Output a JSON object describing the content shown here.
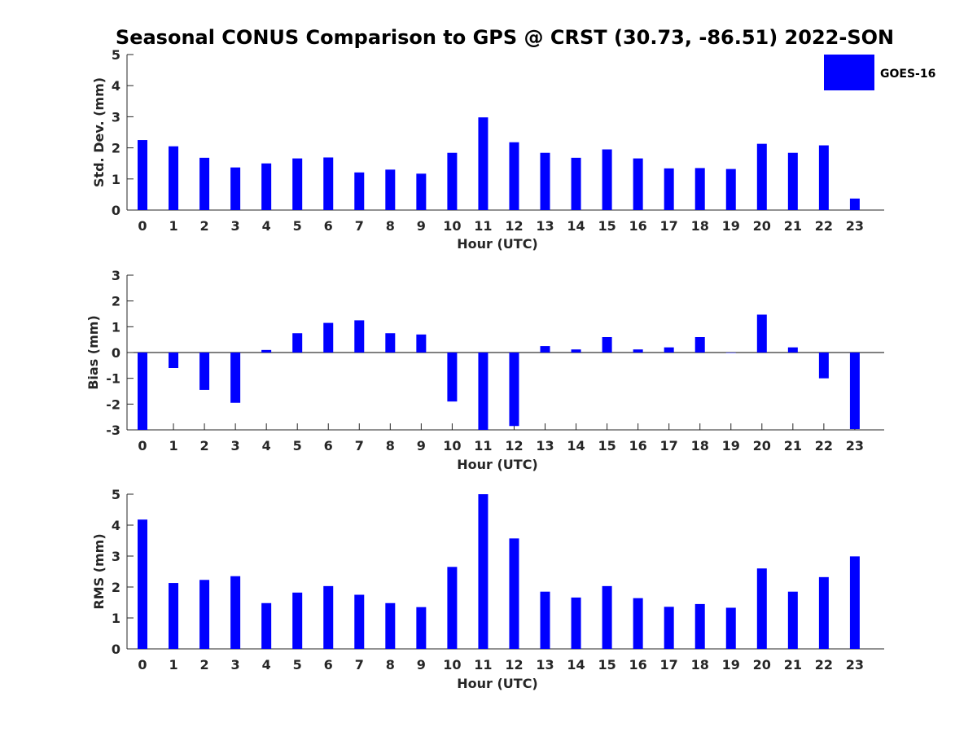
{
  "figure": {
    "title": "Seasonal CONUS Comparison to GPS @ CRST (30.73, -86.51) 2022-SON"
  },
  "legend": {
    "label": "GOES-16",
    "color": "#0000ff"
  },
  "chart_data": [
    {
      "type": "bar",
      "xlabel": "Hour (UTC)",
      "ylabel": "Std. Dev. (mm)",
      "ylim": [
        0,
        5
      ],
      "yticks": [
        0,
        1,
        2,
        3,
        4,
        5
      ],
      "grid": false,
      "legend_position": "top-right",
      "categories": [
        "0",
        "1",
        "2",
        "3",
        "4",
        "5",
        "6",
        "7",
        "8",
        "9",
        "10",
        "11",
        "12",
        "13",
        "14",
        "15",
        "16",
        "17",
        "18",
        "19",
        "20",
        "21",
        "22",
        "23"
      ],
      "series": [
        {
          "name": "GOES-16",
          "color": "#0000ff",
          "values": [
            2.25,
            2.05,
            1.68,
            1.37,
            1.5,
            1.66,
            1.69,
            1.21,
            1.3,
            1.17,
            1.84,
            2.98,
            2.18,
            1.84,
            1.68,
            1.95,
            1.66,
            1.34,
            1.35,
            1.32,
            2.13,
            1.84,
            2.08,
            0.37
          ]
        }
      ]
    },
    {
      "type": "bar",
      "xlabel": "Hour (UTC)",
      "ylabel": "Bias (mm)",
      "ylim": [
        -3,
        3
      ],
      "yticks": [
        -3,
        -2,
        -1,
        0,
        1,
        2,
        3
      ],
      "grid": false,
      "categories": [
        "0",
        "1",
        "2",
        "3",
        "4",
        "5",
        "6",
        "7",
        "8",
        "9",
        "10",
        "11",
        "12",
        "13",
        "14",
        "15",
        "16",
        "17",
        "18",
        "19",
        "20",
        "21",
        "22",
        "23"
      ],
      "series": [
        {
          "name": "GOES-16",
          "color": "#0000ff",
          "values": [
            -3.0,
            -0.6,
            -1.45,
            -1.95,
            0.1,
            0.75,
            1.15,
            1.25,
            0.75,
            0.7,
            -1.9,
            -3.0,
            -2.85,
            0.25,
            0.12,
            0.6,
            0.12,
            0.2,
            0.6,
            0.0,
            1.47,
            0.2,
            -1.0,
            -2.97
          ]
        }
      ]
    },
    {
      "type": "bar",
      "xlabel": "Hour (UTC)",
      "ylabel": "RMS (mm)",
      "ylim": [
        0,
        5
      ],
      "yticks": [
        0,
        1,
        2,
        3,
        4,
        5
      ],
      "grid": false,
      "categories": [
        "0",
        "1",
        "2",
        "3",
        "4",
        "5",
        "6",
        "7",
        "8",
        "9",
        "10",
        "11",
        "12",
        "13",
        "14",
        "15",
        "16",
        "17",
        "18",
        "19",
        "20",
        "21",
        "22",
        "23"
      ],
      "series": [
        {
          "name": "GOES-16",
          "color": "#0000ff",
          "values": [
            4.18,
            2.13,
            2.23,
            2.35,
            1.48,
            1.82,
            2.03,
            1.75,
            1.48,
            1.35,
            2.65,
            5.0,
            3.57,
            1.85,
            1.66,
            2.03,
            1.64,
            1.36,
            1.45,
            1.33,
            2.6,
            1.85,
            2.32,
            2.99
          ]
        }
      ]
    }
  ]
}
